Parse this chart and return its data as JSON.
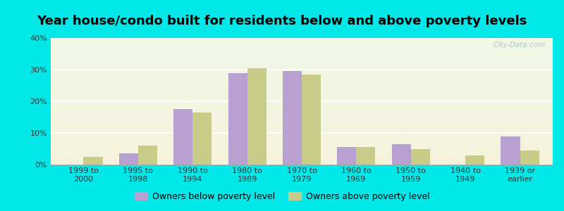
{
  "title": "Year house/condo built for residents below and above poverty levels",
  "categories": [
    "1999 to\n2000",
    "1995 to\n1998",
    "1990 to\n1994",
    "1980 to\n1989",
    "1970 to\n1979",
    "1960 to\n1969",
    "1950 to\n1959",
    "1940 to\n1949",
    "1939 or\nearlier"
  ],
  "below_poverty": [
    0.0,
    3.5,
    17.5,
    29.0,
    29.5,
    5.5,
    6.5,
    0.0,
    9.0
  ],
  "above_poverty": [
    2.5,
    6.0,
    16.5,
    30.5,
    28.5,
    5.5,
    5.0,
    3.0,
    4.5
  ],
  "below_color": "#b8a0d0",
  "above_color": "#c8cc88",
  "background_outer": "#00e8e8",
  "ylim": [
    0,
    40
  ],
  "yticks": [
    0,
    10,
    20,
    30,
    40
  ],
  "ytick_labels": [
    "0%",
    "10%",
    "20%",
    "30%",
    "40%"
  ],
  "legend_below": "Owners below poverty level",
  "legend_above": "Owners above poverty level",
  "bar_width": 0.35,
  "title_fontsize": 13,
  "tick_fontsize": 8.0,
  "legend_fontsize": 9,
  "watermark": "City-Data.com"
}
